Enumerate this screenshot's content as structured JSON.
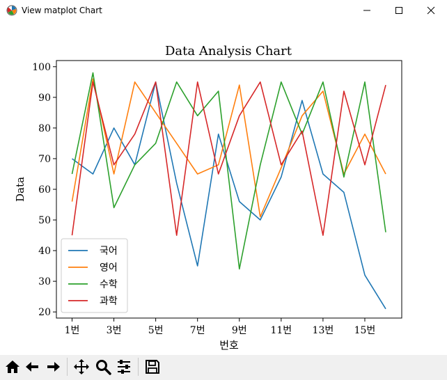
{
  "window": {
    "title": "View matplot Chart"
  },
  "toolbar": {
    "buttons": [
      "home-icon",
      "back-icon",
      "forward-icon",
      "pan-icon",
      "zoom-icon",
      "configure-icon",
      "save-icon"
    ]
  },
  "chart_data": {
    "type": "line",
    "title": "Data Analysis Chart",
    "xlabel": "번호",
    "ylabel": "Data",
    "x": [
      "1번",
      "2번",
      "3번",
      "4번",
      "5번",
      "6번",
      "7번",
      "8번",
      "9번",
      "10번",
      "11번",
      "12번",
      "13번",
      "14번",
      "15번",
      "16번"
    ],
    "xticks": [
      "1번",
      "3번",
      "5번",
      "7번",
      "9번",
      "11번",
      "13번",
      "15번"
    ],
    "yticks": [
      20,
      30,
      40,
      50,
      60,
      70,
      80,
      90,
      100
    ],
    "ylim": [
      18,
      102
    ],
    "grid": false,
    "legend_position": "lower-left",
    "series": [
      {
        "name": "국어",
        "color": "#1f77b4",
        "values": [
          70,
          65,
          80,
          68,
          95,
          62,
          35,
          78,
          56,
          50,
          64,
          89,
          65,
          59,
          32,
          21
        ]
      },
      {
        "name": "영어",
        "color": "#ff7f0e",
        "values": [
          56,
          96,
          65,
          95,
          85,
          75,
          65,
          68,
          94,
          51,
          67,
          84,
          92,
          65,
          78,
          65
        ]
      },
      {
        "name": "수학",
        "color": "#2ca02c",
        "values": [
          65,
          98,
          54,
          68,
          75,
          95,
          84,
          92,
          34,
          68,
          95,
          78,
          95,
          64,
          95,
          46
        ]
      },
      {
        "name": "과학",
        "color": "#d62728",
        "values": [
          45,
          95,
          68,
          78,
          95,
          45,
          95,
          65,
          84,
          95,
          68,
          79,
          45,
          92,
          68,
          94
        ]
      }
    ]
  }
}
